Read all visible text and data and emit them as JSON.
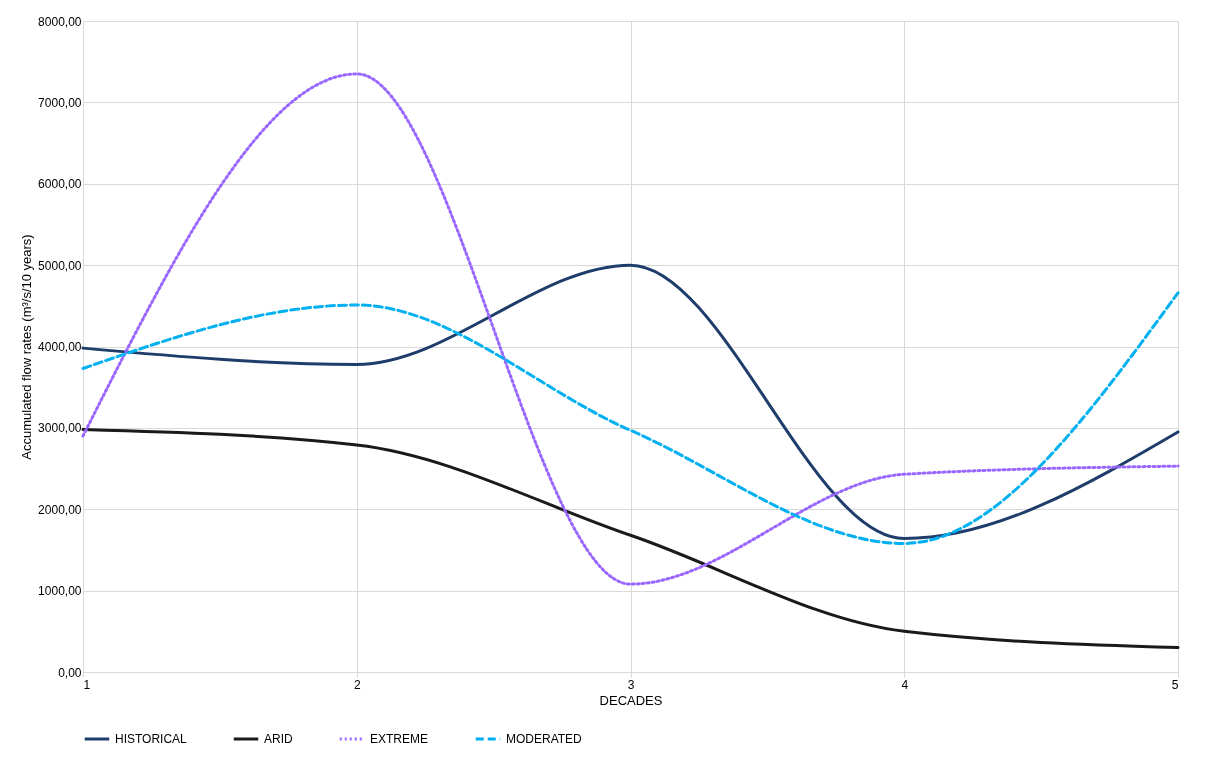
{
  "chart_data": {
    "type": "line",
    "xlabel": "DECADES",
    "ylabel": "Accumulated flow rates (m³/s/10 years)",
    "x": [
      1,
      2,
      3,
      4,
      5
    ],
    "series": [
      {
        "name": "HISTORICAL",
        "color": "#1f3d6b",
        "line_style": "solid",
        "values": [
          3980,
          3780,
          5000,
          1640,
          2950
        ]
      },
      {
        "name": "ARID",
        "color": "#1a1a1a",
        "line_style": "solid",
        "values": [
          2980,
          2790,
          1680,
          500,
          300
        ]
      },
      {
        "name": "EXTREME",
        "color": "#9966ff",
        "line_style": "dotted",
        "values": [
          2900,
          7350,
          1080,
          2430,
          2530
        ]
      },
      {
        "name": "MODERATED",
        "color": "#00b0f0",
        "line_style": "dashed",
        "values": [
          3730,
          4510,
          2970,
          1580,
          4660
        ]
      }
    ],
    "xlim": [
      1,
      5
    ],
    "xticks": [
      1,
      2,
      3,
      4,
      5
    ],
    "ylim": [
      0,
      8000
    ],
    "yticks": [
      {
        "value": 0,
        "label": "0,00"
      },
      {
        "value": 1000,
        "label": "1000,00"
      },
      {
        "value": 2000,
        "label": "2000,00"
      },
      {
        "value": 3000,
        "label": "3000,00"
      },
      {
        "value": 4000,
        "label": "4000,00"
      },
      {
        "value": 5000,
        "label": "5000,00"
      },
      {
        "value": 6000,
        "label": "6000,00"
      },
      {
        "value": 7000,
        "label": "7000,00"
      },
      {
        "value": 8000,
        "label": "8000,00"
      }
    ],
    "grid": true,
    "legend": "bottom"
  }
}
